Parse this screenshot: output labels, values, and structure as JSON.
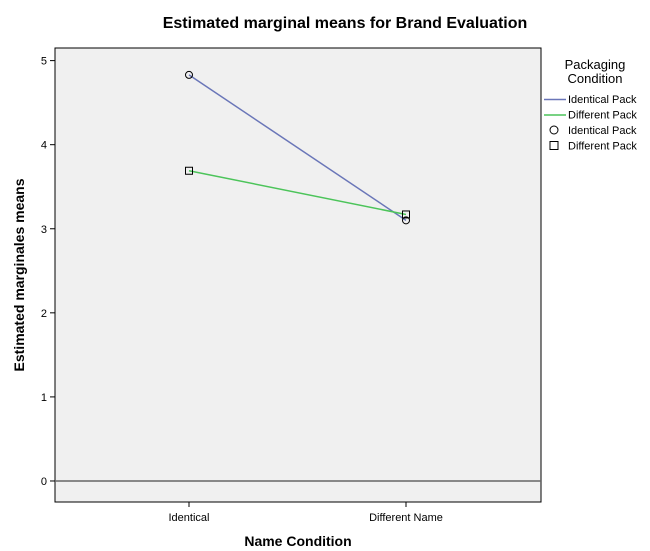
{
  "chart_data": {
    "type": "line",
    "title": "Estimated marginal means for Brand Evaluation",
    "xlabel": "Name Condition",
    "ylabel": "Estimated marginales means",
    "categories": [
      "Identical",
      "Different Name"
    ],
    "ylim": [
      -0.25,
      5.15
    ],
    "yticks": [
      "0",
      "1",
      "2",
      "3",
      "4",
      "5"
    ],
    "reference_line_y": 0,
    "grid": false,
    "legend_position": "right",
    "legend": {
      "title_line1": "Packaging",
      "title_line2": "Condition",
      "line_entries": [
        "Identical Pack",
        "Different Pack"
      ],
      "marker_entries": [
        "Identical Pack",
        "Different Pack"
      ]
    },
    "series": [
      {
        "name": "Identical Pack",
        "values": [
          4.83,
          3.1
        ],
        "color": "#6a76b8",
        "marker": "circle"
      },
      {
        "name": "Different Pack",
        "values": [
          3.69,
          3.17
        ],
        "color": "#4cc45a",
        "marker": "square"
      }
    ],
    "colors": {
      "plot_background": "#f0f0f0",
      "reference_line": "#666666",
      "frame": "#000000"
    }
  }
}
